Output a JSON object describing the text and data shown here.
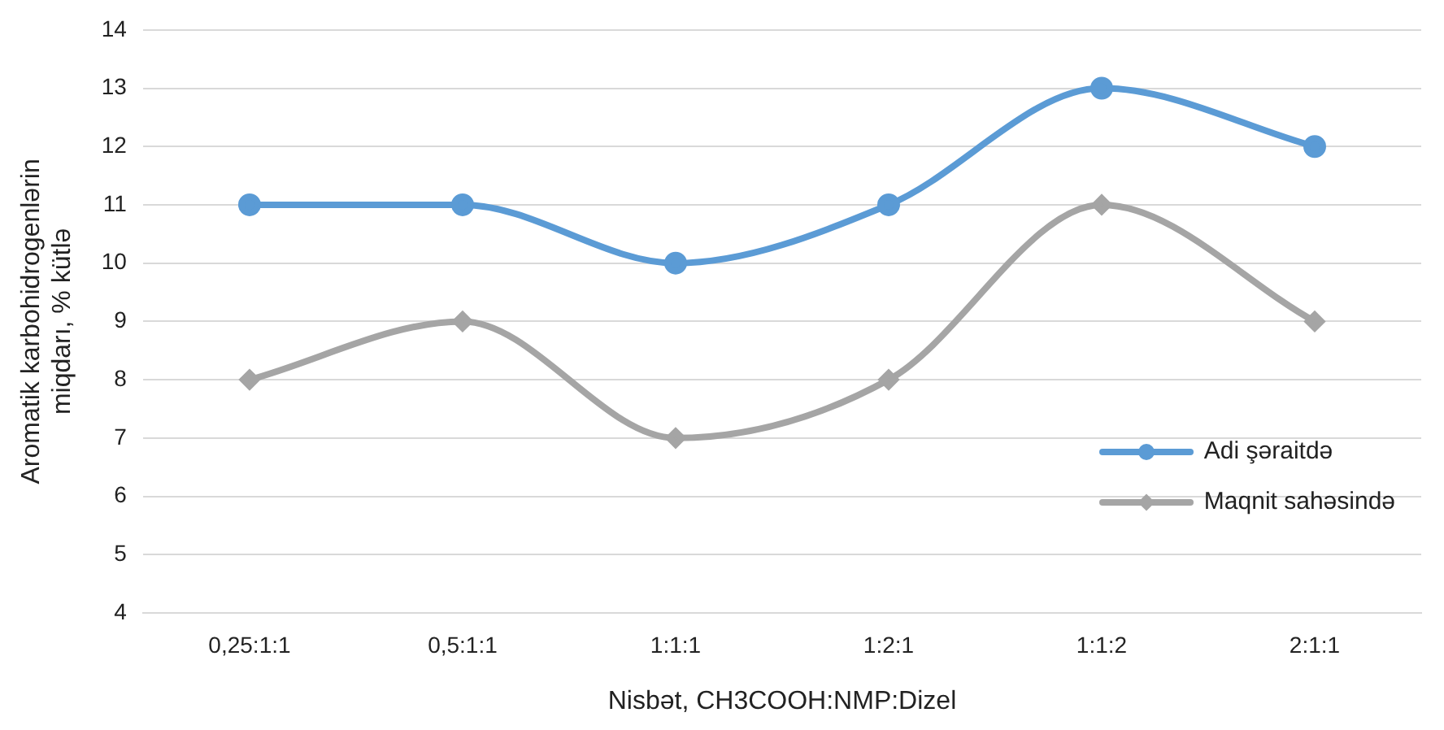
{
  "chart_data": {
    "type": "line",
    "xlabel": "Nisbət, CH3COOH:NMP:Dizel",
    "ylabel": "Aromatik karbohidrogenlərin\nmiqdarı, % kütlə",
    "categories": [
      "0,25:1:1",
      "0,5:1:1",
      "1:1:1",
      "1:2:1",
      "1:1:2",
      "2:1:1"
    ],
    "series": [
      {
        "name": "Adi şəraitdə",
        "color": "#5b9bd5",
        "marker": "circle",
        "values": [
          11,
          11,
          10,
          11,
          13,
          12
        ]
      },
      {
        "name": "Maqnit sahəsində",
        "color": "#a5a5a5",
        "marker": "diamond",
        "values": [
          8,
          9,
          7,
          8,
          11,
          9
        ]
      }
    ],
    "ylim": [
      4,
      14
    ],
    "yticks": [
      4,
      5,
      6,
      7,
      8,
      9,
      10,
      11,
      12,
      13,
      14
    ],
    "grid": "y",
    "legend": "right"
  }
}
